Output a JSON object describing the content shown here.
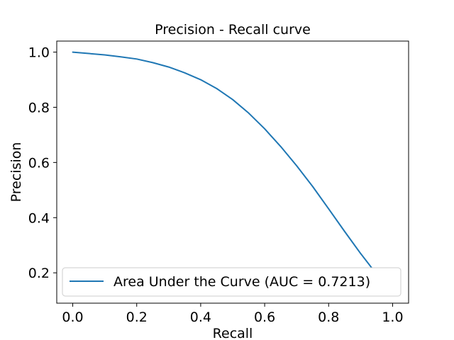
{
  "chart_data": {
    "type": "line",
    "title": "Precision - Recall curve",
    "xlabel": "Recall",
    "ylabel": "Precision",
    "xlim": [
      -0.05,
      1.05
    ],
    "ylim": [
      0.09,
      1.04
    ],
    "xticks": [
      0.0,
      0.2,
      0.4,
      0.6,
      0.8,
      1.0
    ],
    "xtick_labels": [
      "0.0",
      "0.2",
      "0.4",
      "0.6",
      "0.8",
      "1.0"
    ],
    "yticks": [
      0.2,
      0.4,
      0.6,
      0.8,
      1.0
    ],
    "ytick_labels": [
      "0.2",
      "0.4",
      "0.6",
      "0.8",
      "1.0"
    ],
    "grid": false,
    "legend_position": "lower-left",
    "series": [
      {
        "name": "Area Under the Curve (AUC = 0.7213)",
        "color": "#1f77b4",
        "x": [
          0.0,
          0.05,
          0.1,
          0.15,
          0.2,
          0.25,
          0.3,
          0.35,
          0.4,
          0.45,
          0.5,
          0.55,
          0.6,
          0.65,
          0.7,
          0.75,
          0.8,
          0.85,
          0.9,
          0.95,
          1.0
        ],
        "y": [
          1.0,
          0.995,
          0.99,
          0.983,
          0.975,
          0.962,
          0.946,
          0.925,
          0.9,
          0.868,
          0.828,
          0.779,
          0.722,
          0.658,
          0.588,
          0.513,
          0.432,
          0.35,
          0.27,
          0.195,
          0.125
        ]
      }
    ]
  }
}
